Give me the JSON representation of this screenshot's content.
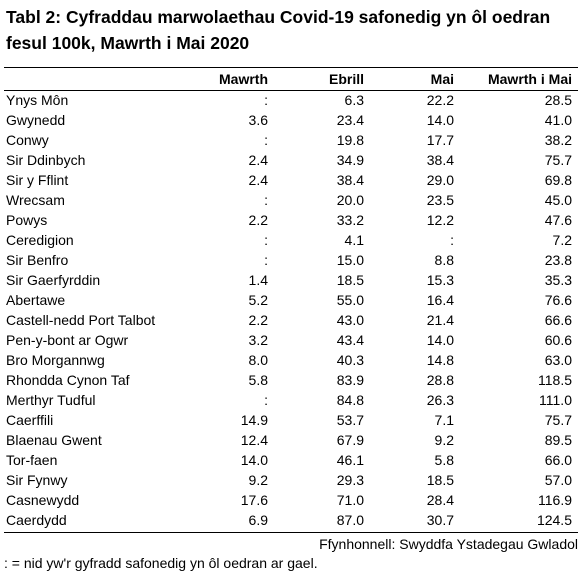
{
  "title": "Tabl 2: Cyfraddau marwolaethau Covid-19 safonedig yn ôl oedran fesul 100k, Mawrth i Mai 2020",
  "columns": [
    "",
    "Mawrth",
    "Ebrill",
    "Mai",
    "Mawrth i Mai"
  ],
  "rows": [
    [
      "Ynys Môn",
      ":",
      "6.3",
      "22.2",
      "28.5"
    ],
    [
      "Gwynedd",
      "3.6",
      "23.4",
      "14.0",
      "41.0"
    ],
    [
      "Conwy",
      ":",
      "19.8",
      "17.7",
      "38.2"
    ],
    [
      "Sir Ddinbych",
      "2.4",
      "34.9",
      "38.4",
      "75.7"
    ],
    [
      "Sir y Fflint",
      "2.4",
      "38.4",
      "29.0",
      "69.8"
    ],
    [
      "Wrecsam",
      ":",
      "20.0",
      "23.5",
      "45.0"
    ],
    [
      "Powys",
      "2.2",
      "33.2",
      "12.2",
      "47.6"
    ],
    [
      "Ceredigion",
      ":",
      "4.1",
      ":",
      "7.2"
    ],
    [
      "Sir Benfro",
      ":",
      "15.0",
      "8.8",
      "23.8"
    ],
    [
      "Sir Gaerfyrddin",
      "1.4",
      "18.5",
      "15.3",
      "35.3"
    ],
    [
      "Abertawe",
      "5.2",
      "55.0",
      "16.4",
      "76.6"
    ],
    [
      "Castell-nedd Port Talbot",
      "2.2",
      "43.0",
      "21.4",
      "66.6"
    ],
    [
      "Pen-y-bont ar Ogwr",
      "3.2",
      "43.4",
      "14.0",
      "60.6"
    ],
    [
      "Bro Morgannwg",
      "8.0",
      "40.3",
      "14.8",
      "63.0"
    ],
    [
      "Rhondda Cynon Taf",
      "5.8",
      "83.9",
      "28.8",
      "118.5"
    ],
    [
      "Merthyr Tudful",
      ":",
      "84.8",
      "26.3",
      "111.0"
    ],
    [
      "Caerffili",
      "14.9",
      "53.7",
      "7.1",
      "75.7"
    ],
    [
      "Blaenau Gwent",
      "12.4",
      "67.9",
      "9.2",
      "89.5"
    ],
    [
      "Tor-faen",
      "14.0",
      "46.1",
      "5.8",
      "66.0"
    ],
    [
      "Sir Fynwy",
      "9.2",
      "29.3",
      "18.5",
      "57.0"
    ],
    [
      "Casnewydd",
      "17.6",
      "71.0",
      "28.4",
      "116.9"
    ],
    [
      "Caerdydd",
      "6.9",
      "87.0",
      "30.7",
      "124.5"
    ]
  ],
  "source": "Ffynhonnell: Swyddfa Ystadegau Gwladol",
  "note": ": = nid yw'r gyfradd safonedig yn ôl oedran ar gael."
}
